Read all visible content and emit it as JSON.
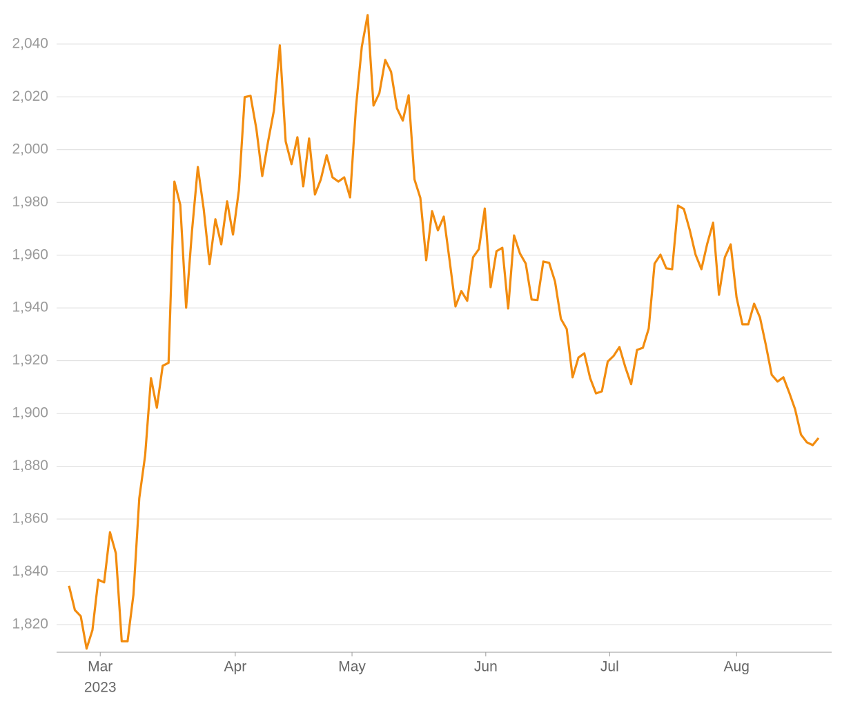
{
  "chart_data": {
    "type": "line",
    "series": [
      {
        "color": "#f28c0f",
        "values": [
          1834.7,
          1825.5,
          1823.2,
          1810.9,
          1817.9,
          1837,
          1836,
          1855,
          1847,
          1813.7,
          1813.7,
          1831.3,
          1867.9,
          1884.1,
          1913.4,
          1902.2,
          1918.1,
          1919.2,
          1987.9,
          1979.1,
          1940.1,
          1969.1,
          1993.4,
          1977.5,
          1956.6,
          1973.6,
          1964.1,
          1980.4,
          1967.8,
          1984.5,
          2019.9,
          2020.4,
          2007.8,
          1990,
          2003.1,
          2014.9,
          2039.5,
          2003.1,
          1994.5,
          2004.7,
          1986.1,
          2004.2,
          1983,
          1988.7,
          1997.9,
          1989.5,
          1987.9,
          1989.5,
          1981.9,
          2015.9,
          2039,
          2051,
          2016.7,
          2021.4,
          2034,
          2029.5,
          2015.7,
          2011,
          2020.6,
          1988.7,
          1981.7,
          1958.1,
          1976.7,
          1969.4,
          1974.6,
          1957.9,
          1940.6,
          1946.4,
          1942.7,
          1959.2,
          1962.3,
          1977.7,
          1947.9,
          1961.5,
          1962.8,
          1939.8,
          1967.5,
          1960.7,
          1956.8,
          1943.2,
          1943,
          1957.6,
          1957.1,
          1950,
          1935.9,
          1932,
          1913.7,
          1921.2,
          1922.8,
          1913.4,
          1907.6,
          1908.4,
          1919.7,
          1921.8,
          1925.2,
          1917.6,
          1911.1,
          1924.1,
          1924.9,
          1932.2,
          1956.8,
          1960.2,
          1955,
          1954.7,
          1978.8,
          1977.5,
          1969.6,
          1960.2,
          1954.7,
          1964.4,
          1972.3,
          1945,
          1959.2,
          1964.1,
          1944,
          1933.8,
          1933.8,
          1941.6,
          1936.4,
          1926,
          1914.7,
          1912.1,
          1913.7,
          1907.9,
          1901.6,
          1892,
          1889.1,
          1888,
          1890.7
        ]
      }
    ],
    "xlim": [
      0,
      128
    ],
    "xticks": [
      {
        "value": 5.33,
        "label": "Mar"
      },
      {
        "value": 28.39,
        "label": "Apr"
      },
      {
        "value": 48.33,
        "label": "May"
      },
      {
        "value": 71.17,
        "label": "Jun"
      },
      {
        "value": 92.33,
        "label": "Jul"
      },
      {
        "value": 114,
        "label": "Aug"
      }
    ],
    "xtick_year": "2023",
    "ylim": [
      1809,
      2052
    ],
    "yticks": [
      {
        "value": 1820,
        "label": "1,820"
      },
      {
        "value": 1840,
        "label": "1,840"
      },
      {
        "value": 1860,
        "label": "1,860"
      },
      {
        "value": 1880,
        "label": "1,880"
      },
      {
        "value": 1900,
        "label": "1,900"
      },
      {
        "value": 1920,
        "label": "1,920"
      },
      {
        "value": 1940,
        "label": "1,940"
      },
      {
        "value": 1960,
        "label": "1,960"
      },
      {
        "value": 1980,
        "label": "1,980"
      },
      {
        "value": 2000,
        "label": "2,000"
      },
      {
        "value": 2020,
        "label": "2,020"
      },
      {
        "value": 2040,
        "label": "2,040"
      }
    ],
    "grid": true
  }
}
